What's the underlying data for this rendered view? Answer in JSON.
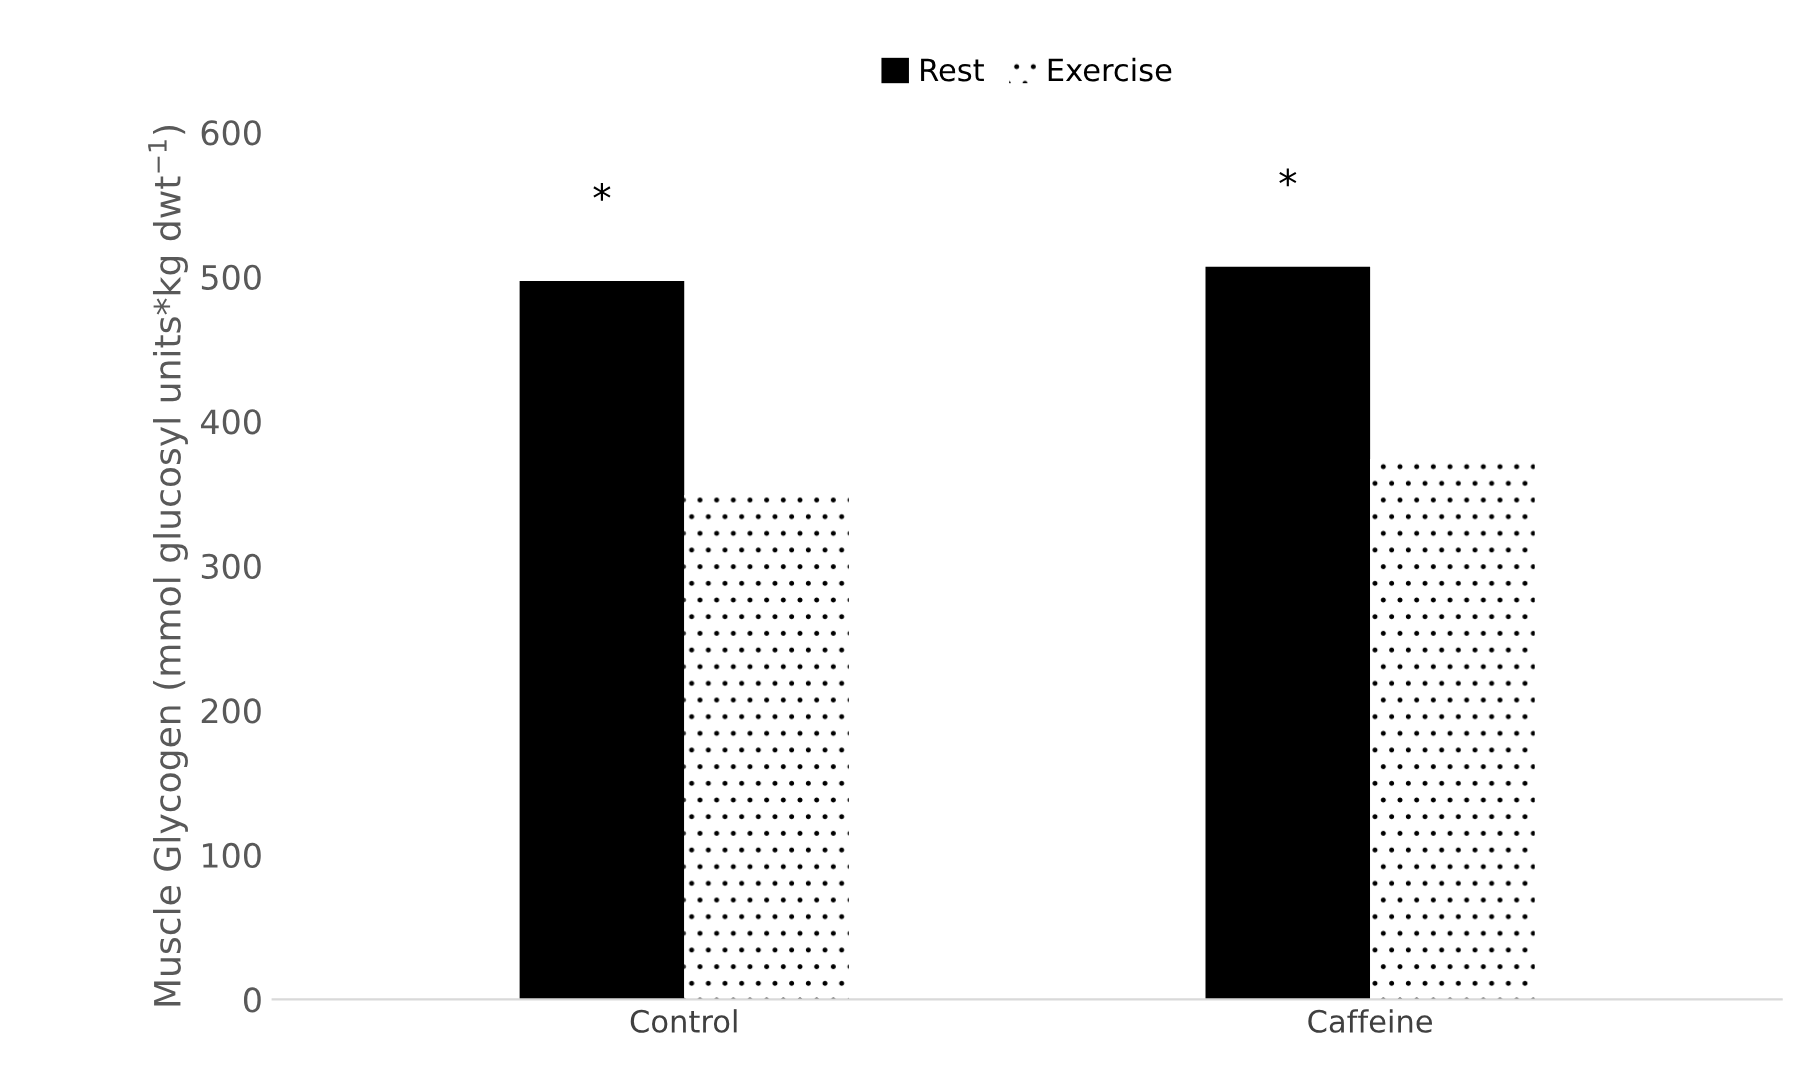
{
  "chart_data": {
    "type": "bar",
    "ylabel": "Muscle Glycogen (mmol glucosyl units*kg dwt$^{−1}$)",
    "categories": [
      "Control",
      "Caffeine"
    ],
    "series": [
      {
        "name": "Rest",
        "color": "#000000",
        "values": [
          497,
          507
        ]
      },
      {
        "name": "Exercise",
        "color": "#ffffff",
        "values": [
          349,
          374
        ]
      }
    ],
    "ylim": [
      0,
      600
    ],
    "yticks": [
      0,
      100,
      200,
      300,
      400,
      500,
      600
    ],
    "grid": false,
    "legend": "top",
    "annotations": [
      "*",
      "*"
    ]
  }
}
